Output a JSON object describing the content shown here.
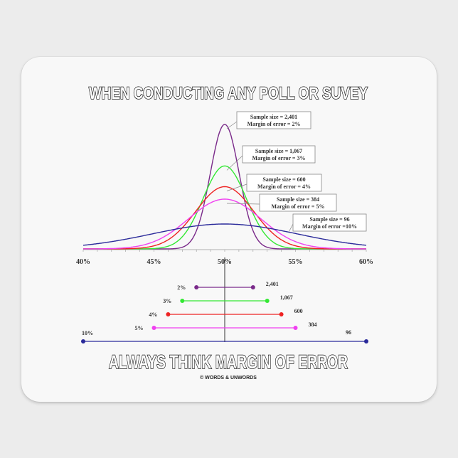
{
  "title_top": "WHEN CONDUCTING ANY POLL OR SUVEY",
  "title_bottom": "ALWAYS THINK MARGIN OF ERROR",
  "copyright": "© WORDS & UNWORDS",
  "chart_data": [
    {
      "type": "line",
      "description_type": "normal distribution curves",
      "x_tick_labels": [
        "40%",
        "45%",
        "50%",
        "55%",
        "60%"
      ],
      "xlim": [
        40,
        60
      ],
      "center": 50,
      "series": [
        {
          "sample_size": "2,401",
          "margin_of_error": 2,
          "label_line1": "Sample size = 2,401",
          "label_line2": "Margin of error = 2%",
          "color": "#7a2a8a"
        },
        {
          "sample_size": "1,067",
          "margin_of_error": 3,
          "label_line1": "Sample size = 1,067",
          "label_line2": "Margin of error = 3%",
          "color": "#33e833"
        },
        {
          "sample_size": "600",
          "margin_of_error": 4,
          "label_line1": "Sample size = 600",
          "label_line2": "Margin of error = 4%",
          "color": "#ee2222"
        },
        {
          "sample_size": "384",
          "margin_of_error": 5,
          "label_line1": "Sample size = 384",
          "label_line2": "Margin of error = 5%",
          "color": "#f040f0"
        },
        {
          "sample_size": "96",
          "margin_of_error": 10,
          "label_line1": "Sample size = 96",
          "label_line2": "Margin of error =10%",
          "color": "#2a2a9a"
        }
      ]
    },
    {
      "type": "interval",
      "center": 50,
      "intervals": [
        {
          "moe_label": "2%",
          "n_label": "2,401",
          "low": 48,
          "high": 52,
          "color": "#7a2a8a"
        },
        {
          "moe_label": "3%",
          "n_label": "1,067",
          "low": 47,
          "high": 53,
          "color": "#33e833"
        },
        {
          "moe_label": "4%",
          "n_label": "600",
          "low": 46,
          "high": 54,
          "color": "#ee2222"
        },
        {
          "moe_label": "5%",
          "n_label": "384",
          "low": 45,
          "high": 55,
          "color": "#f040f0"
        },
        {
          "moe_label": "10%",
          "n_label": "96",
          "low": 40,
          "high": 60,
          "color": "#2a2a9a"
        }
      ]
    }
  ]
}
